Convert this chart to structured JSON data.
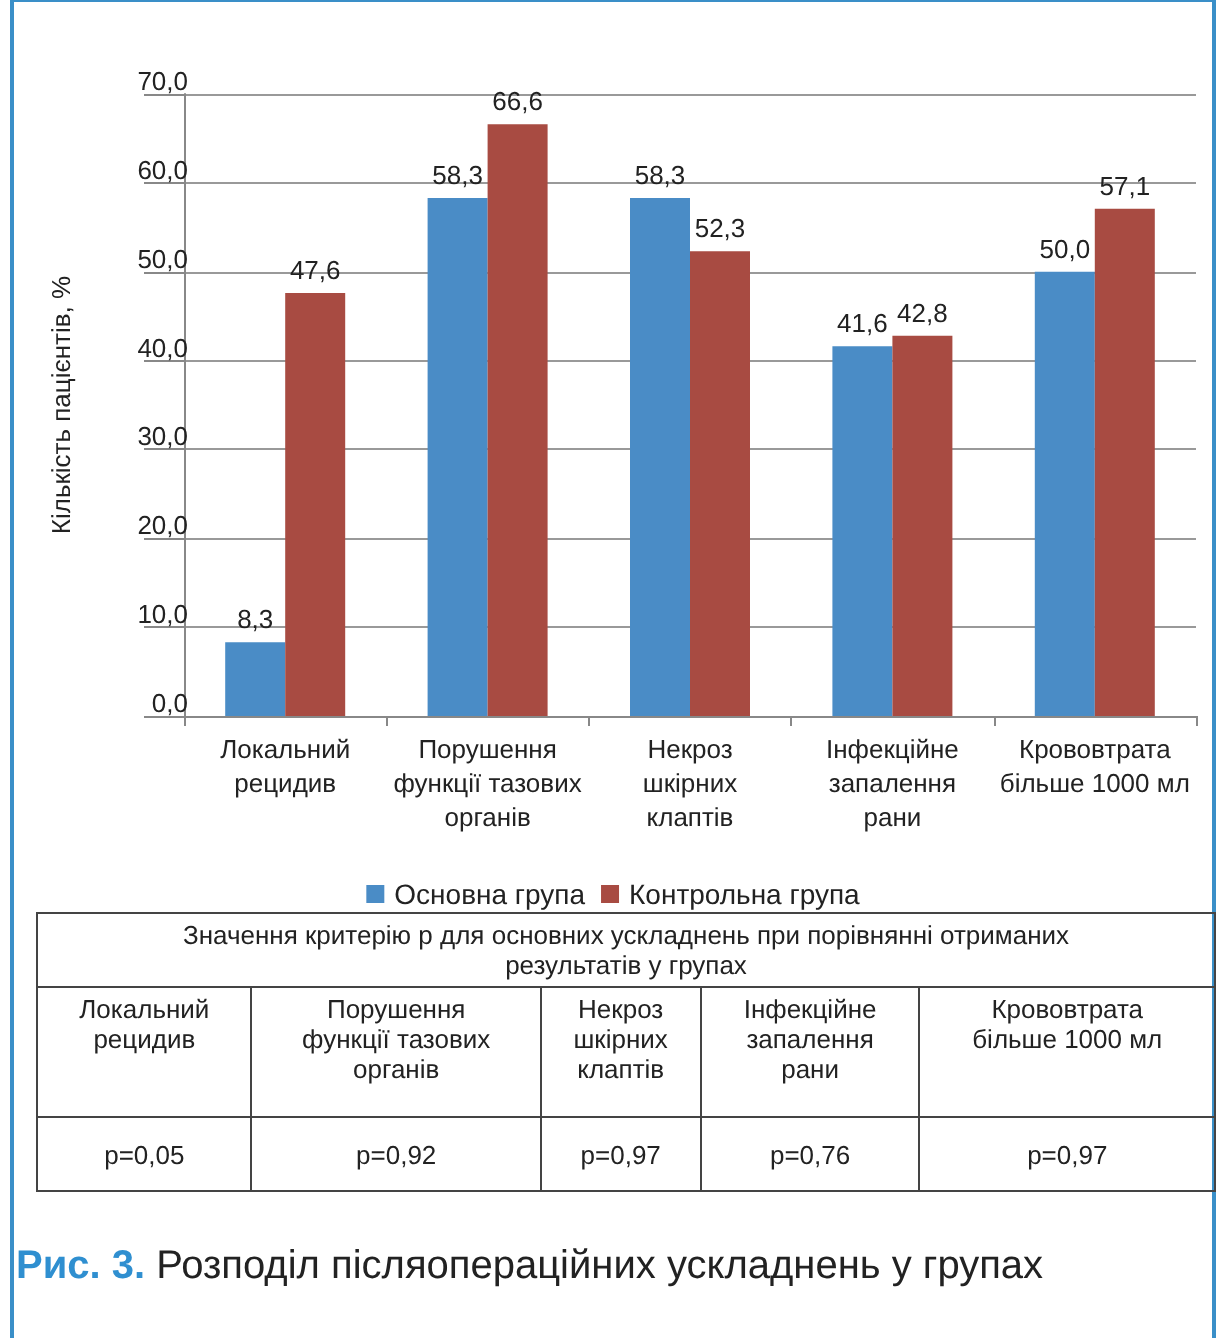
{
  "chart_data": {
    "type": "bar",
    "title": "Рис. 3. Розподіл післяопераційних ускладнень у групах",
    "ylabel": "Кількість пацієнтів, %",
    "categories": [
      "Локальний\nрецидив",
      "Порушення\nфункції тазових\nорганів",
      "Некроз\nшкірних\nклаптів",
      "Інфекційне\nзапалення\nрани",
      "Крововтрата\nбільше 1000 мл"
    ],
    "series": [
      {
        "name": "Основна група",
        "color": "#4a8cc6",
        "values": [
          8.3,
          58.3,
          58.3,
          41.6,
          50.0
        ],
        "value_labels": [
          "8,3",
          "58,3",
          "58,3",
          "41,6",
          "50,0"
        ]
      },
      {
        "name": "Контрольна група",
        "color": "#a84b42",
        "values": [
          47.6,
          66.6,
          52.3,
          42.8,
          57.1
        ],
        "value_labels": [
          "47,6",
          "66,6",
          "52,3",
          "42,8",
          "57,1"
        ]
      }
    ],
    "ylim": [
      0,
      70
    ],
    "yticks": [
      {
        "value": 0,
        "label": "0,0"
      },
      {
        "value": 10,
        "label": "10,0"
      },
      {
        "value": 20,
        "label": "20,0"
      },
      {
        "value": 30,
        "label": "30,0"
      },
      {
        "value": 40,
        "label": "40,0"
      },
      {
        "value": 50,
        "label": "50,0"
      },
      {
        "value": 60,
        "label": "60,0"
      },
      {
        "value": 70,
        "label": "70,0"
      }
    ],
    "grid": "y",
    "legend": "bottom",
    "annotations": [
      "Значення критерію p для основних ускладнень при порівнянні отриманих результатів у групах",
      "p=0,05",
      "p=0,92",
      "p=0,97",
      "p=0,76",
      "p=0,97"
    ]
  }
}
